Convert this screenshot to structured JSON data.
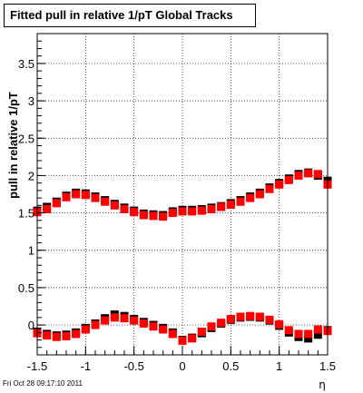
{
  "title": "Fitted pull in relative 1/pT  Global Tracks",
  "footer": "Fri Oct 28 09:17:10 2011",
  "colors": {
    "background": "#ffffff",
    "series_a": "#000000",
    "series_b": "#ff0000",
    "grid": "#000000"
  },
  "chart_data": {
    "type": "scatter",
    "title": "Fitted pull in relative 1/pT  Global Tracks",
    "xlabel": "η",
    "ylabel": "pull in relative 1/pT",
    "xlim": [
      -1.5,
      1.5
    ],
    "ylim": [
      -0.4,
      3.9
    ],
    "grid": true,
    "x_ticks": [
      -1.5,
      -1,
      -0.5,
      0,
      0.5,
      1,
      1.5
    ],
    "x_tick_labels": [
      "-1.5",
      "-1",
      "-0.5",
      "0",
      "0.5",
      "1",
      "1.5"
    ],
    "y_ticks": [
      0,
      0.5,
      1,
      1.5,
      2,
      2.5,
      3,
      3.5
    ],
    "y_tick_labels": [
      "0",
      "0.5",
      "1",
      "1.5",
      "2",
      "2.5",
      "3",
      "3.5"
    ],
    "series": [
      {
        "color": "#000000",
        "points": [
          [
            -1.5,
            1.53
          ],
          [
            -1.4,
            1.58
          ],
          [
            -1.3,
            1.65
          ],
          [
            -1.2,
            1.73
          ],
          [
            -1.1,
            1.77
          ],
          [
            -1.0,
            1.76
          ],
          [
            -0.9,
            1.72
          ],
          [
            -0.8,
            1.67
          ],
          [
            -0.7,
            1.62
          ],
          [
            -0.6,
            1.57
          ],
          [
            -0.5,
            1.53
          ],
          [
            -0.4,
            1.49
          ],
          [
            -0.3,
            1.48
          ],
          [
            -0.2,
            1.47
          ],
          [
            -0.1,
            1.52
          ],
          [
            0.0,
            1.54
          ],
          [
            0.1,
            1.54
          ],
          [
            0.2,
            1.55
          ],
          [
            0.3,
            1.57
          ],
          [
            0.4,
            1.59
          ],
          [
            0.5,
            1.63
          ],
          [
            0.6,
            1.67
          ],
          [
            0.7,
            1.72
          ],
          [
            0.8,
            1.77
          ],
          [
            0.9,
            1.84
          ],
          [
            1.0,
            1.9
          ],
          [
            1.1,
            1.96
          ],
          [
            1.2,
            2.02
          ],
          [
            1.3,
            2.04
          ],
          [
            1.4,
            2.0
          ],
          [
            1.5,
            1.93
          ],
          [
            -1.5,
            -0.09
          ],
          [
            -1.4,
            -0.12
          ],
          [
            -1.3,
            -0.14
          ],
          [
            -1.2,
            -0.13
          ],
          [
            -1.1,
            -0.1
          ],
          [
            -1.0,
            -0.04
          ],
          [
            -0.9,
            0.02
          ],
          [
            -0.8,
            0.09
          ],
          [
            -0.7,
            0.14
          ],
          [
            -0.6,
            0.12
          ],
          [
            -0.5,
            0.08
          ],
          [
            -0.4,
            0.04
          ],
          [
            -0.3,
            0.0
          ],
          [
            -0.2,
            -0.04
          ],
          [
            -0.1,
            -0.1
          ],
          [
            0.0,
            -0.2
          ],
          [
            0.1,
            -0.17
          ],
          [
            0.2,
            -0.11
          ],
          [
            0.3,
            -0.04
          ],
          [
            0.4,
            0.02
          ],
          [
            0.5,
            0.07
          ],
          [
            0.6,
            0.1
          ],
          [
            0.7,
            0.11
          ],
          [
            0.8,
            0.1
          ],
          [
            0.9,
            0.06
          ],
          [
            1.0,
            -0.01
          ],
          [
            1.1,
            -0.1
          ],
          [
            1.2,
            -0.16
          ],
          [
            1.3,
            -0.18
          ],
          [
            1.4,
            -0.13
          ],
          [
            1.5,
            -0.07
          ]
        ]
      },
      {
        "color": "#ff0000",
        "points": [
          [
            -1.5,
            1.51
          ],
          [
            -1.4,
            1.55
          ],
          [
            -1.3,
            1.63
          ],
          [
            -1.2,
            1.71
          ],
          [
            -1.1,
            1.75
          ],
          [
            -1.0,
            1.74
          ],
          [
            -0.9,
            1.7
          ],
          [
            -0.8,
            1.65
          ],
          [
            -0.7,
            1.6
          ],
          [
            -0.6,
            1.55
          ],
          [
            -0.5,
            1.51
          ],
          [
            -0.4,
            1.47
          ],
          [
            -0.3,
            1.46
          ],
          [
            -0.2,
            1.45
          ],
          [
            -0.1,
            1.5
          ],
          [
            0.0,
            1.52
          ],
          [
            0.1,
            1.52
          ],
          [
            0.2,
            1.53
          ],
          [
            0.3,
            1.55
          ],
          [
            0.4,
            1.58
          ],
          [
            0.5,
            1.61
          ],
          [
            0.6,
            1.65
          ],
          [
            0.7,
            1.7
          ],
          [
            0.8,
            1.75
          ],
          [
            0.9,
            1.82
          ],
          [
            1.0,
            1.88
          ],
          [
            1.1,
            1.94
          ],
          [
            1.2,
            2.0
          ],
          [
            1.3,
            2.03
          ],
          [
            1.4,
            2.02
          ],
          [
            1.5,
            1.88
          ],
          [
            -1.5,
            -0.11
          ],
          [
            -1.4,
            -0.14
          ],
          [
            -1.3,
            -0.16
          ],
          [
            -1.2,
            -0.15
          ],
          [
            -1.1,
            -0.12
          ],
          [
            -1.0,
            -0.06
          ],
          [
            -0.9,
            0.0
          ],
          [
            -0.8,
            0.06
          ],
          [
            -0.7,
            0.1
          ],
          [
            -0.6,
            0.09
          ],
          [
            -0.5,
            0.06
          ],
          [
            -0.4,
            0.02
          ],
          [
            -0.3,
            -0.02
          ],
          [
            -0.2,
            -0.06
          ],
          [
            -0.1,
            -0.12
          ],
          [
            0.0,
            -0.21
          ],
          [
            0.1,
            -0.18
          ],
          [
            0.2,
            -0.09
          ],
          [
            0.3,
            -0.02
          ],
          [
            0.4,
            0.03
          ],
          [
            0.5,
            0.08
          ],
          [
            0.6,
            0.11
          ],
          [
            0.7,
            0.12
          ],
          [
            0.8,
            0.11
          ],
          [
            0.9,
            0.07
          ],
          [
            1.0,
            0.01
          ],
          [
            1.1,
            -0.07
          ],
          [
            1.2,
            -0.12
          ],
          [
            1.3,
            -0.12
          ],
          [
            1.4,
            -0.06
          ],
          [
            1.5,
            -0.08
          ]
        ]
      }
    ]
  }
}
